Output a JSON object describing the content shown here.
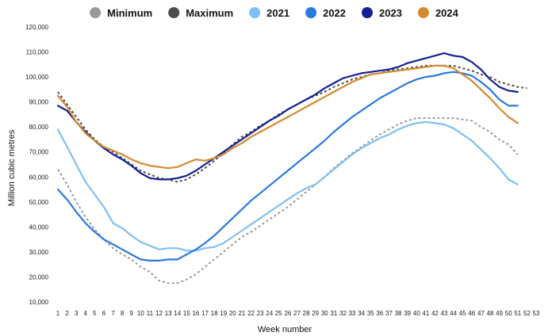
{
  "chart_data": {
    "type": "line",
    "xlabel": "Week number",
    "ylabel": "Million cubic metres",
    "x": [
      1,
      2,
      3,
      4,
      5,
      6,
      7,
      8,
      9,
      10,
      11,
      12,
      13,
      14,
      15,
      16,
      17,
      18,
      19,
      20,
      21,
      22,
      23,
      24,
      25,
      26,
      27,
      28,
      29,
      30,
      31,
      32,
      33,
      34,
      35,
      36,
      37,
      38,
      39,
      40,
      41,
      42,
      43,
      44,
      45,
      46,
      47,
      48,
      49,
      50,
      51,
      52,
      53
    ],
    "xlim": [
      1,
      53
    ],
    "ylim": [
      10000,
      120000
    ],
    "y_ticks": [
      "10,000",
      "20,000",
      "30,000",
      "40,000",
      "50,000",
      "60,000",
      "70,000",
      "80,000",
      "90,000",
      "100,000",
      "110,000",
      "120,000"
    ],
    "grid": false,
    "legend_position": "top",
    "series": [
      {
        "name": "Minimum",
        "color": "#9a9a9a",
        "style": "dashed",
        "values": [
          63000,
          57000,
          50000,
          44000,
          39000,
          35000,
          31500,
          29000,
          27000,
          24000,
          22000,
          18500,
          17500,
          17500,
          19000,
          21000,
          24000,
          27000,
          30000,
          33000,
          36000,
          38000,
          40500,
          43000,
          45500,
          48000,
          51000,
          54000,
          57000,
          60000,
          63500,
          66500,
          69500,
          72000,
          74500,
          77000,
          79000,
          81000,
          82500,
          83500,
          83500,
          83500,
          83500,
          83500,
          83000,
          82500,
          80000,
          78000,
          75000,
          73000,
          69000,
          null,
          null
        ]
      },
      {
        "name": "Maximum",
        "color": "#4d4d4d",
        "style": "dashed",
        "values": [
          94000,
          89000,
          84000,
          79000,
          75000,
          72000,
          70000,
          67500,
          65000,
          62500,
          61000,
          59500,
          59000,
          58000,
          59000,
          61000,
          63500,
          66500,
          69500,
          73000,
          76000,
          78000,
          80500,
          82500,
          85000,
          87000,
          89000,
          91000,
          92500,
          94000,
          96000,
          97500,
          99000,
          100000,
          101000,
          101500,
          102500,
          103000,
          103500,
          104000,
          104500,
          104500,
          104500,
          104500,
          103500,
          102500,
          101000,
          100000,
          98000,
          97000,
          96000,
          95500,
          null
        ]
      },
      {
        "name": "2021",
        "color": "#7ec0f3",
        "style": "solid",
        "values": [
          79000,
          72000,
          65000,
          58000,
          53000,
          48000,
          41500,
          39500,
          36500,
          34000,
          32500,
          31000,
          31500,
          31500,
          30500,
          30500,
          31500,
          32000,
          33500,
          36000,
          38500,
          41000,
          43500,
          46000,
          48500,
          51000,
          53500,
          55500,
          57000,
          60000,
          63000,
          66000,
          69000,
          71500,
          73500,
          75500,
          77000,
          79000,
          80500,
          81500,
          82000,
          81500,
          81000,
          79500,
          77000,
          74500,
          71000,
          67500,
          63500,
          59000,
          57000,
          null,
          null
        ]
      },
      {
        "name": "2022",
        "color": "#2b79e0",
        "style": "solid",
        "values": [
          55000,
          51000,
          46000,
          41500,
          38000,
          35000,
          33000,
          31000,
          29000,
          27000,
          26500,
          26500,
          27000,
          27000,
          29000,
          31000,
          33500,
          36500,
          40000,
          43500,
          47000,
          50500,
          53500,
          56500,
          59500,
          62500,
          65500,
          68500,
          71500,
          74500,
          78000,
          81000,
          84000,
          86500,
          89000,
          91500,
          93500,
          95500,
          97500,
          99000,
          100000,
          100500,
          101500,
          102000,
          101500,
          100500,
          98000,
          95000,
          91000,
          88500,
          88500,
          null,
          null
        ]
      },
      {
        "name": "2023",
        "color": "#142090",
        "style": "solid",
        "values": [
          88500,
          86500,
          82000,
          78000,
          74500,
          71500,
          69000,
          67000,
          64500,
          61500,
          59500,
          59000,
          59000,
          59500,
          60500,
          62500,
          65000,
          67500,
          70000,
          72500,
          75000,
          77500,
          80000,
          82500,
          84500,
          87000,
          89000,
          91000,
          93000,
          95500,
          97500,
          99500,
          100500,
          101500,
          102000,
          102500,
          103000,
          104000,
          105500,
          106500,
          107500,
          108500,
          109500,
          108500,
          108000,
          106000,
          103000,
          99000,
          96000,
          94500,
          94000,
          null,
          null
        ]
      },
      {
        "name": "2024",
        "color": "#d38b30",
        "style": "solid",
        "values": [
          92500,
          88000,
          82000,
          77500,
          74500,
          72000,
          70500,
          69000,
          67000,
          65500,
          64500,
          64000,
          63500,
          64000,
          65500,
          67000,
          66500,
          67500,
          69000,
          71500,
          73500,
          76000,
          78000,
          80000,
          82000,
          84000,
          86000,
          88000,
          90000,
          92000,
          94000,
          96000,
          98000,
          99500,
          101000,
          101500,
          102000,
          102500,
          103000,
          103500,
          104000,
          104500,
          104500,
          103500,
          101000,
          98500,
          95000,
          91500,
          87500,
          84000,
          81500,
          null,
          null
        ]
      }
    ]
  }
}
